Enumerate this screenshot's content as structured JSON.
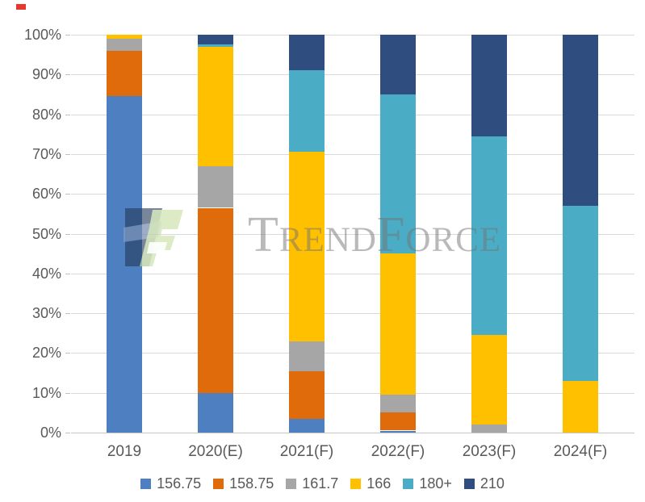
{
  "watermark": {
    "text": "TrendForce"
  },
  "marker": {
    "color": "#E8382D"
  },
  "axes": {
    "text_color": "#595959",
    "gridline_color": "#D9D9D9",
    "axisline_color": "#C6C6C6"
  },
  "chart_data": {
    "type": "bar",
    "subtype": "100-percent-stacked-column",
    "title": "",
    "xlabel": "",
    "ylabel": "",
    "ylim": [
      0,
      100
    ],
    "grid": "horizontal",
    "legend_position": "bottom",
    "y_ticks": [
      "100%",
      "90%",
      "80%",
      "70%",
      "60%",
      "50%",
      "40%",
      "30%",
      "20%",
      "10%",
      "0%"
    ],
    "categories": [
      "2019",
      "2020(E)",
      "2021(F)",
      "2022(F)",
      "2023(F)",
      "2024(F)"
    ],
    "series": [
      {
        "name": "156.75",
        "color": "#4E80C1",
        "values": [
          84.5,
          10,
          3.5,
          0.5,
          0,
          0
        ]
      },
      {
        "name": "158.75",
        "color": "#E06B0A",
        "values": [
          11.5,
          46.5,
          12,
          4.5,
          0,
          0
        ]
      },
      {
        "name": "161.7",
        "color": "#A6A6A6",
        "values": [
          3,
          10.5,
          7.5,
          4.5,
          2,
          0
        ]
      },
      {
        "name": "166",
        "color": "#FFC000",
        "values": [
          1,
          30,
          47.5,
          35.5,
          22.5,
          13
        ]
      },
      {
        "name": "180+",
        "color": "#4AACC5",
        "values": [
          0,
          0.5,
          20.5,
          40,
          50,
          44
        ]
      },
      {
        "name": "210",
        "color": "#2F4D7E",
        "values": [
          0,
          2.5,
          9,
          15,
          25.5,
          43
        ]
      }
    ]
  }
}
